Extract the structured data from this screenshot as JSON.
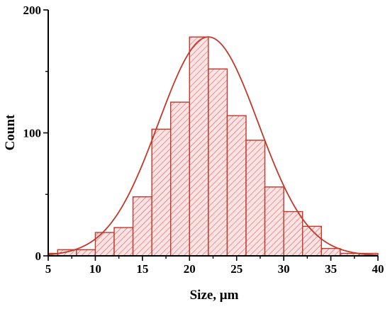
{
  "chart_data": {
    "type": "bar",
    "xlabel": "Size, μm",
    "ylabel": "Count",
    "xlim": [
      5,
      40
    ],
    "ylim": [
      0,
      200
    ],
    "x_ticks": [
      5,
      10,
      15,
      20,
      25,
      30,
      35,
      40
    ],
    "y_ticks": [
      0,
      100,
      200
    ],
    "bin_width": 2,
    "bins": [
      {
        "start": 5,
        "end": 6,
        "count": 2
      },
      {
        "start": 6,
        "end": 8,
        "count": 5
      },
      {
        "start": 8,
        "end": 10,
        "count": 5
      },
      {
        "start": 10,
        "end": 12,
        "count": 19
      },
      {
        "start": 12,
        "end": 14,
        "count": 23
      },
      {
        "start": 14,
        "end": 16,
        "count": 48
      },
      {
        "start": 16,
        "end": 18,
        "count": 103
      },
      {
        "start": 18,
        "end": 20,
        "count": 125
      },
      {
        "start": 20,
        "end": 22,
        "count": 178
      },
      {
        "start": 22,
        "end": 24,
        "count": 152
      },
      {
        "start": 24,
        "end": 26,
        "count": 114
      },
      {
        "start": 26,
        "end": 28,
        "count": 94
      },
      {
        "start": 28,
        "end": 30,
        "count": 56
      },
      {
        "start": 30,
        "end": 32,
        "count": 36
      },
      {
        "start": 32,
        "end": 34,
        "count": 24
      },
      {
        "start": 34,
        "end": 36,
        "count": 6
      },
      {
        "start": 36,
        "end": 38,
        "count": 2
      },
      {
        "start": 38,
        "end": 40,
        "count": 2
      }
    ],
    "fit_curve": {
      "type": "gaussian",
      "mean": 22,
      "sigma": 5.3,
      "peak": 178
    },
    "colors": {
      "bar_stroke": "#c0392b",
      "bar_fill": "#fde3e3",
      "hatch": "#d9534f",
      "curve": "#c0392b",
      "axis": "#000000"
    },
    "grid": false,
    "legend": "none"
  }
}
